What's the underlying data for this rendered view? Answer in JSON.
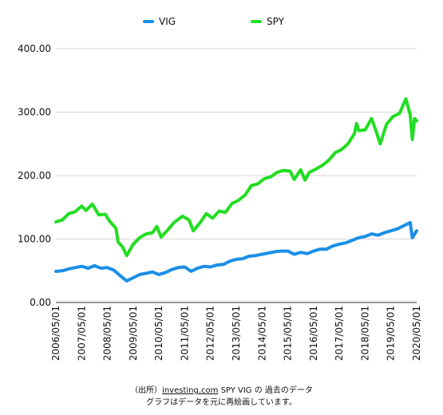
{
  "chart_data": {
    "type": "line",
    "legend_position": "top-center",
    "grid": "horizontal",
    "ylim": [
      0,
      400
    ],
    "y_ticks": [
      "0.00",
      "100.00",
      "200.00",
      "300.00",
      "400.00"
    ],
    "x_ticks": [
      "2006/05/01",
      "2007/05/01",
      "2008/05/01",
      "2009/05/01",
      "2010/05/01",
      "2011/05/01",
      "2012/05/01",
      "2013/05/01",
      "2014/05/01",
      "2015/05/01",
      "2016/05/01",
      "2017/05/01",
      "2018/05/01",
      "2019/05/01",
      "2020/05/01"
    ],
    "x_range": [
      "2006/05/01",
      "2020/05/01"
    ],
    "series": [
      {
        "name": "VIG",
        "color": "#1a8fe6",
        "points": [
          [
            "2006/05",
            49
          ],
          [
            "2006/08",
            50
          ],
          [
            "2006/11",
            53
          ],
          [
            "2007/02",
            55
          ],
          [
            "2007/05",
            57
          ],
          [
            "2007/08",
            54
          ],
          [
            "2007/11",
            58
          ],
          [
            "2008/02",
            54
          ],
          [
            "2008/05",
            55
          ],
          [
            "2008/08",
            51
          ],
          [
            "2008/11",
            42
          ],
          [
            "2009/02",
            34
          ],
          [
            "2009/05",
            39
          ],
          [
            "2009/08",
            44
          ],
          [
            "2009/11",
            46
          ],
          [
            "2010/02",
            48
          ],
          [
            "2010/05",
            44
          ],
          [
            "2010/08",
            47
          ],
          [
            "2010/11",
            52
          ],
          [
            "2011/02",
            55
          ],
          [
            "2011/05",
            56
          ],
          [
            "2011/08",
            49
          ],
          [
            "2011/11",
            54
          ],
          [
            "2012/02",
            57
          ],
          [
            "2012/05",
            56
          ],
          [
            "2012/08",
            59
          ],
          [
            "2012/11",
            60
          ],
          [
            "2013/02",
            65
          ],
          [
            "2013/05",
            68
          ],
          [
            "2013/08",
            69
          ],
          [
            "2013/11",
            73
          ],
          [
            "2014/02",
            74
          ],
          [
            "2014/05",
            76
          ],
          [
            "2014/08",
            78
          ],
          [
            "2014/11",
            80
          ],
          [
            "2015/02",
            81
          ],
          [
            "2015/05",
            81
          ],
          [
            "2015/08",
            76
          ],
          [
            "2015/11",
            79
          ],
          [
            "2016/02",
            77
          ],
          [
            "2016/05",
            81
          ],
          [
            "2016/08",
            84
          ],
          [
            "2016/11",
            84
          ],
          [
            "2017/02",
            89
          ],
          [
            "2017/05",
            92
          ],
          [
            "2017/08",
            94
          ],
          [
            "2017/11",
            98
          ],
          [
            "2018/02",
            102
          ],
          [
            "2018/05",
            104
          ],
          [
            "2018/08",
            108
          ],
          [
            "2018/11",
            106
          ],
          [
            "2019/02",
            110
          ],
          [
            "2019/05",
            113
          ],
          [
            "2019/08",
            116
          ],
          [
            "2019/11",
            121
          ],
          [
            "2020/02",
            126
          ],
          [
            "2020/03",
            102
          ],
          [
            "2020/05",
            113
          ]
        ]
      },
      {
        "name": "SPY",
        "color": "#22dd22",
        "points": [
          [
            "2006/05",
            127
          ],
          [
            "2006/08",
            130
          ],
          [
            "2006/11",
            140
          ],
          [
            "2007/02",
            143
          ],
          [
            "2007/05",
            152
          ],
          [
            "2007/07",
            145
          ],
          [
            "2007/10",
            155
          ],
          [
            "2008/01",
            138
          ],
          [
            "2008/04",
            139
          ],
          [
            "2008/06",
            128
          ],
          [
            "2008/09",
            117
          ],
          [
            "2008/10",
            95
          ],
          [
            "2008/12",
            88
          ],
          [
            "2009/02",
            74
          ],
          [
            "2009/05",
            92
          ],
          [
            "2009/08",
            102
          ],
          [
            "2009/11",
            108
          ],
          [
            "2010/02",
            110
          ],
          [
            "2010/04",
            120
          ],
          [
            "2010/06",
            103
          ],
          [
            "2010/09",
            114
          ],
          [
            "2010/12",
            126
          ],
          [
            "2011/04",
            136
          ],
          [
            "2011/07",
            130
          ],
          [
            "2011/09",
            113
          ],
          [
            "2011/12",
            125
          ],
          [
            "2012/03",
            140
          ],
          [
            "2012/06",
            133
          ],
          [
            "2012/09",
            144
          ],
          [
            "2012/12",
            142
          ],
          [
            "2013/03",
            156
          ],
          [
            "2013/06",
            161
          ],
          [
            "2013/09",
            169
          ],
          [
            "2013/12",
            184
          ],
          [
            "2014/03",
            187
          ],
          [
            "2014/06",
            195
          ],
          [
            "2014/09",
            198
          ],
          [
            "2014/12",
            205
          ],
          [
            "2015/03",
            208
          ],
          [
            "2015/06",
            207
          ],
          [
            "2015/08",
            194
          ],
          [
            "2015/11",
            209
          ],
          [
            "2016/01",
            193
          ],
          [
            "2016/03",
            205
          ],
          [
            "2016/06",
            210
          ],
          [
            "2016/09",
            216
          ],
          [
            "2016/12",
            224
          ],
          [
            "2017/03",
            236
          ],
          [
            "2017/06",
            241
          ],
          [
            "2017/09",
            250
          ],
          [
            "2017/12",
            266
          ],
          [
            "2018/01",
            282
          ],
          [
            "2018/02",
            271
          ],
          [
            "2018/05",
            272
          ],
          [
            "2018/08",
            290
          ],
          [
            "2018/10",
            271
          ],
          [
            "2018/12",
            250
          ],
          [
            "2019/03",
            281
          ],
          [
            "2019/06",
            293
          ],
          [
            "2019/09",
            298
          ],
          [
            "2019/12",
            321
          ],
          [
            "2020/02",
            296
          ],
          [
            "2020/03",
            257
          ],
          [
            "2020/04",
            290
          ],
          [
            "2020/05",
            286
          ]
        ]
      }
    ]
  },
  "caption": {
    "line1_prefix": "（出所）",
    "line1_link": "investing.com",
    "line1_suffix": "  SPY VIG の 過去のデータ",
    "line2": "グラフはデータを元に再絵画しています。"
  }
}
